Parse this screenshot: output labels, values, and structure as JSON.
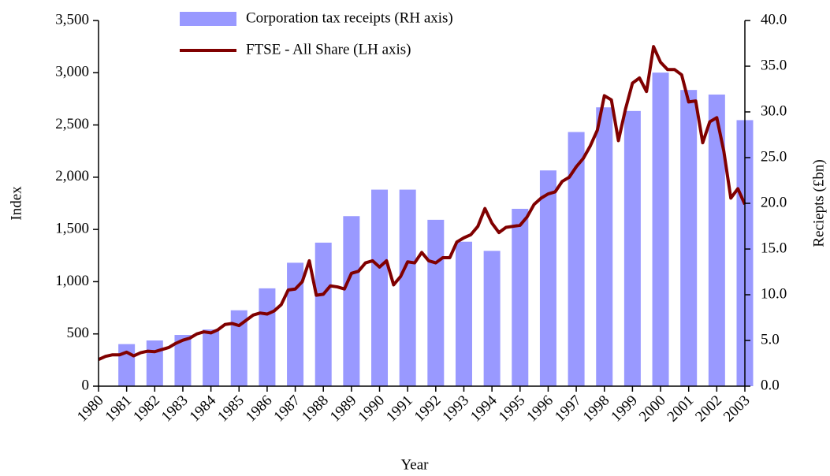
{
  "chart_data": {
    "type": "bar+line",
    "x_label": "Year",
    "y_label": "Index",
    "y2_label": "Reciepts (£bn)",
    "legend": "top",
    "xlim": [
      1980,
      2003
    ],
    "xticks": [
      1980,
      1981,
      1982,
      1983,
      1984,
      1985,
      1986,
      1987,
      1988,
      1989,
      1990,
      1991,
      1992,
      1993,
      1994,
      1995,
      1996,
      1997,
      1998,
      1999,
      2000,
      2001,
      2002,
      2003
    ],
    "ylim": [
      0,
      3500
    ],
    "yticks": [
      0,
      500,
      {
        "value": 1000,
        "label": "1,000"
      },
      {
        "value": 1500,
        "label": "1,500"
      },
      {
        "value": 2000,
        "label": "2,000"
      },
      {
        "value": 2500,
        "label": "2,500"
      },
      {
        "value": 3000,
        "label": "3,000"
      },
      {
        "value": 3500,
        "label": "3,500"
      }
    ],
    "y2lim": [
      0,
      40
    ],
    "y2ticks": [
      {
        "value": 0,
        "label": "0.0"
      },
      {
        "value": 5,
        "label": "5.0"
      },
      {
        "value": 10,
        "label": "10.0"
      },
      {
        "value": 15,
        "label": "15.0"
      },
      {
        "value": 20,
        "label": "20.0"
      },
      {
        "value": 25,
        "label": "25.0"
      },
      {
        "value": 30,
        "label": "30.0"
      },
      {
        "value": 35,
        "label": "35.0"
      },
      {
        "value": 40,
        "label": "40.0"
      }
    ],
    "series": [
      {
        "name": "Corporation tax receipts (RH axis)",
        "type": "bar",
        "axis": "y2",
        "color": "#9999ff",
        "x": [
          1981,
          1982,
          1983,
          1984,
          1985,
          1986,
          1987,
          1988,
          1989,
          1990,
          1991,
          1992,
          1993,
          1994,
          1995,
          1996,
          1997,
          1998,
          1999,
          2000,
          2001,
          2002,
          2003
        ],
        "values": [
          4.6,
          5.0,
          5.6,
          6.2,
          8.3,
          10.7,
          13.5,
          15.7,
          18.6,
          21.5,
          21.5,
          18.2,
          15.8,
          14.8,
          19.4,
          23.6,
          27.8,
          30.5,
          30.1,
          34.3,
          32.4,
          31.9,
          29.1
        ]
      },
      {
        "name": "FTSE - All Share (LH axis)",
        "type": "line",
        "axis": "y",
        "color": "#800000",
        "x": [
          1980,
          1980.25,
          1980.5,
          1980.75,
          1981,
          1981.25,
          1981.5,
          1981.75,
          1982,
          1982.25,
          1982.5,
          1982.75,
          1983,
          1983.25,
          1983.5,
          1983.75,
          1984,
          1984.25,
          1984.5,
          1984.75,
          1985,
          1985.25,
          1985.5,
          1985.75,
          1986,
          1986.25,
          1986.5,
          1986.75,
          1987,
          1987.25,
          1987.5,
          1987.75,
          1988,
          1988.25,
          1988.5,
          1988.75,
          1989,
          1989.25,
          1989.5,
          1989.75,
          1990,
          1990.25,
          1990.5,
          1990.75,
          1991,
          1991.25,
          1991.5,
          1991.75,
          1992,
          1992.25,
          1992.5,
          1992.75,
          1993,
          1993.25,
          1993.5,
          1993.75,
          1994,
          1994.25,
          1994.5,
          1994.75,
          1995,
          1995.25,
          1995.5,
          1995.75,
          1996,
          1996.25,
          1996.5,
          1996.75,
          1997,
          1997.25,
          1997.5,
          1997.75,
          1998,
          1998.25,
          1998.5,
          1998.75,
          1999,
          1999.25,
          1999.5,
          1999.75,
          2000,
          2000.25,
          2000.5,
          2000.75,
          2001,
          2001.25,
          2001.5,
          2001.75,
          2002,
          2002.25,
          2002.5,
          2002.75,
          2003
        ],
        "values": [
          255,
          285,
          300,
          300,
          325,
          290,
          320,
          335,
          330,
          350,
          370,
          410,
          440,
          460,
          500,
          520,
          510,
          540,
          590,
          600,
          580,
          630,
          680,
          700,
          690,
          720,
          780,
          920,
          930,
          1000,
          1200,
          870,
          880,
          960,
          950,
          930,
          1080,
          1100,
          1180,
          1200,
          1140,
          1200,
          970,
          1050,
          1190,
          1180,
          1280,
          1200,
          1180,
          1230,
          1230,
          1380,
          1420,
          1450,
          1530,
          1700,
          1560,
          1470,
          1520,
          1530,
          1540,
          1620,
          1740,
          1800,
          1840,
          1860,
          1960,
          2000,
          2100,
          2180,
          2300,
          2450,
          2780,
          2740,
          2350,
          2650,
          2900,
          2950,
          2820,
          3250,
          3100,
          3030,
          3030,
          2980,
          2720,
          2730,
          2330,
          2530,
          2570,
          2250,
          1800,
          1890,
          1740
        ]
      }
    ]
  }
}
